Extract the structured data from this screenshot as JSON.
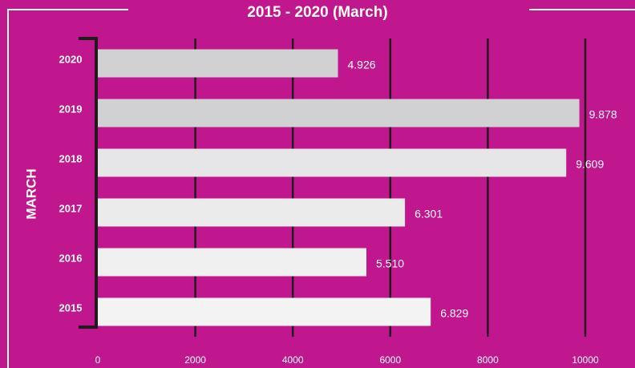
{
  "chart_data": {
    "type": "bar",
    "orientation": "horizontal",
    "title": "2015 - 2020 (March)",
    "y_label": "MARCH",
    "categories": [
      "2020",
      "2019",
      "2018",
      "2017",
      "2016",
      "2015"
    ],
    "values": [
      4926,
      9878,
      9609,
      6301,
      5510,
      6829
    ],
    "value_labels": [
      "4.926",
      "9.878",
      "9.609",
      "6.301",
      "5.510",
      "6.829"
    ],
    "colors": [
      "#d1d1d3",
      "#d1d1d3",
      "#e6e6e8",
      "#ebebeb",
      "#f0f0f0",
      "#f3f3f3"
    ],
    "xlim": [
      0,
      10000
    ],
    "xticks": [
      0,
      2000,
      4000,
      6000,
      8000,
      10000
    ],
    "grid": true
  }
}
